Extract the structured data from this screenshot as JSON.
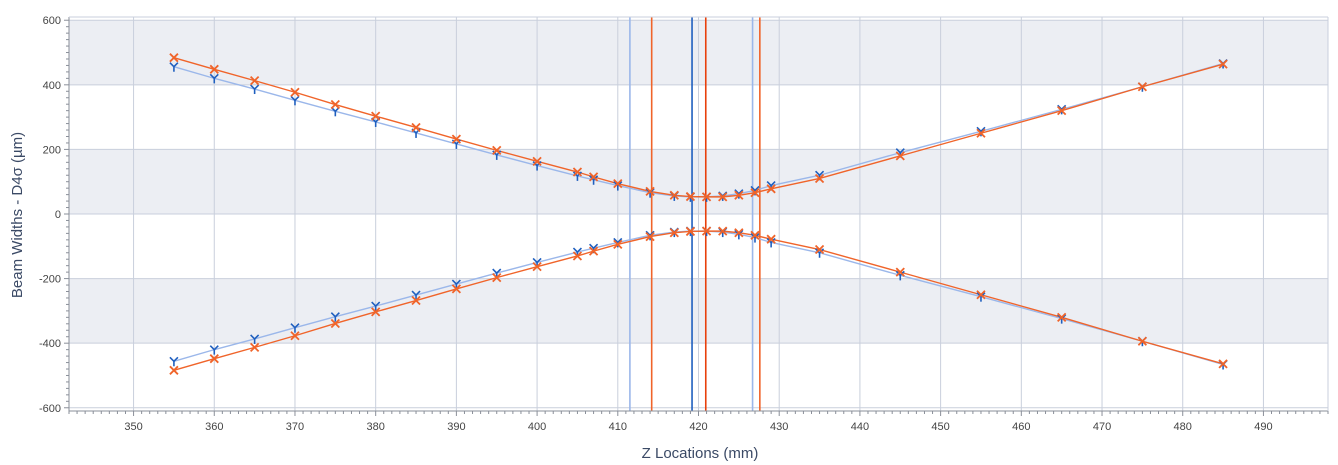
{
  "chart_data": {
    "type": "scatter",
    "xlabel": "Z Locations (mm)",
    "ylabel": "Beam Widths - D4σ (µm)",
    "xlim": [
      342,
      498
    ],
    "ylim": [
      -610,
      610
    ],
    "xticks": [
      350,
      360,
      370,
      380,
      390,
      400,
      410,
      420,
      430,
      440,
      450,
      460,
      470,
      480,
      490
    ],
    "yticks": [
      -600,
      -400,
      -200,
      0,
      200,
      400,
      600
    ],
    "grid": true,
    "legend": "none",
    "x": [
      355,
      360,
      365,
      370,
      375,
      380,
      385,
      390,
      395,
      400,
      405,
      407,
      410,
      414,
      417,
      419,
      421,
      423,
      425,
      427,
      429,
      435,
      445,
      455,
      465,
      475,
      485
    ],
    "series": [
      {
        "color": "#1f5fbf",
        "line_color": "#9bb7ea",
        "marker": "Y",
        "values": [
          456,
          420,
          387,
          352,
          318,
          285,
          251,
          217,
          183,
          150,
          118,
          106,
          88,
          66,
          56,
          53,
          53,
          56,
          63,
          73,
          88,
          120,
          190,
          256,
          324,
          394,
          466
        ]
      },
      {
        "color": "#f0642a",
        "line_color": "#f0642a",
        "marker": "X",
        "values": [
          484,
          448,
          413,
          377,
          339,
          303,
          268,
          232,
          197,
          163,
          130,
          115,
          94,
          70,
          58,
          54,
          53,
          53,
          58,
          66,
          78,
          110,
          180,
          250,
          320,
          394,
          464
        ]
      }
    ],
    "vlines": [
      {
        "x": 411.5,
        "color": "#9bb7ea"
      },
      {
        "x": 414.2,
        "color": "#f0642a"
      },
      {
        "x": 419.2,
        "color": "#1f5fbf"
      },
      {
        "x": 420.9,
        "color": "#e8400c"
      },
      {
        "x": 426.7,
        "color": "#9bb7ea"
      },
      {
        "x": 427.6,
        "color": "#f0642a"
      }
    ],
    "band_color": "#eceef3",
    "grid_color": "#c9cfdc"
  }
}
